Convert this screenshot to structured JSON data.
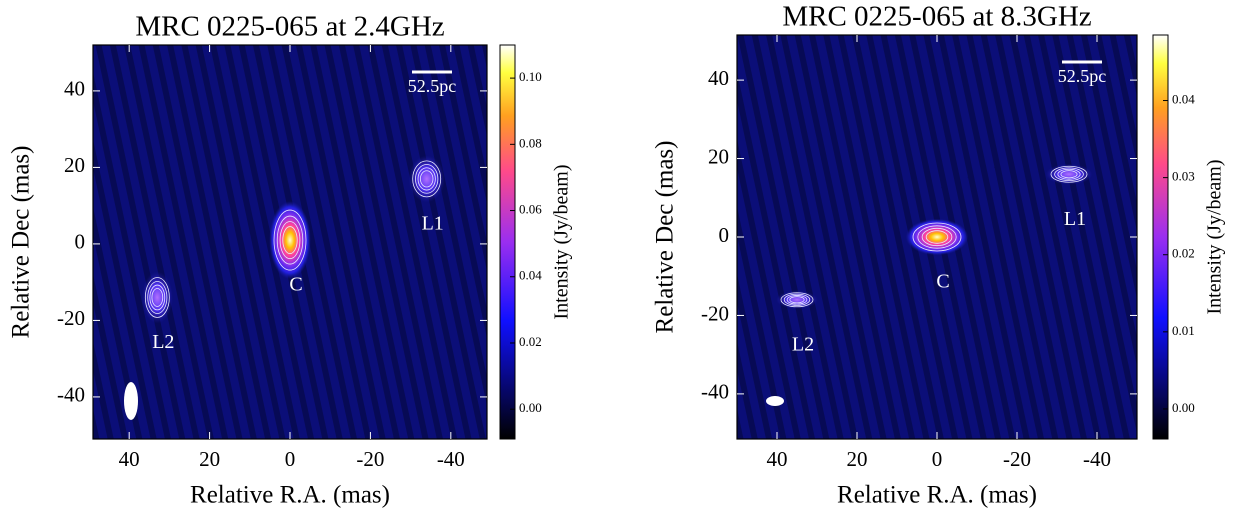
{
  "chart_data": [
    {
      "type": "image",
      "title": "MRC 0225-065 at 2.4GHz",
      "xlabel": "Relative R.A. (mas)",
      "ylabel": "Relative Dec (mas)",
      "xlim": [
        49,
        -49
      ],
      "ylim": [
        -51,
        52
      ],
      "xticks": [
        40,
        20,
        0,
        -20,
        -40
      ],
      "yticks": [
        -40,
        -20,
        0,
        20,
        40
      ],
      "scale_bar": "52.5pc",
      "components": [
        {
          "label": "C",
          "x": 0,
          "y": 1
        },
        {
          "label": "L1",
          "x": -34,
          "y": 17
        },
        {
          "label": "L2",
          "x": 33,
          "y": -14
        }
      ],
      "colorbar_label": "Intensity (Jy/beam)",
      "clim": [
        -0.009,
        0.11
      ],
      "cticks": [
        {
          "value": 0,
          "label": "0.00"
        },
        0.02,
        0.04,
        0.06,
        0.08,
        {
          "value": 0.1,
          "label": "0.10"
        }
      ]
    },
    {
      "type": "image",
      "title": "MRC 0225-065 at 8.3GHz",
      "xlabel": "Relative R.A. (mas)",
      "ylabel": "Relative Dec (mas)",
      "xlim": [
        50,
        -50
      ],
      "ylim": [
        -51.5,
        51.5
      ],
      "xticks": [
        40,
        20,
        0,
        -20,
        -40
      ],
      "yticks": [
        -40,
        -20,
        0,
        20,
        40
      ],
      "scale_bar": "52.5pc",
      "components": [
        {
          "label": "C",
          "x": 0,
          "y": 0
        },
        {
          "label": "L1",
          "x": -33,
          "y": 16
        },
        {
          "label": "L2",
          "x": 35,
          "y": -16
        }
      ],
      "colorbar_label": "Intensity (Jy/beam)",
      "clim": [
        -0.0039,
        0.0485
      ],
      "cticks": [
        {
          "value": 0,
          "label": "0.00"
        },
        0.01,
        0.02,
        0.03,
        0.04
      ]
    }
  ]
}
